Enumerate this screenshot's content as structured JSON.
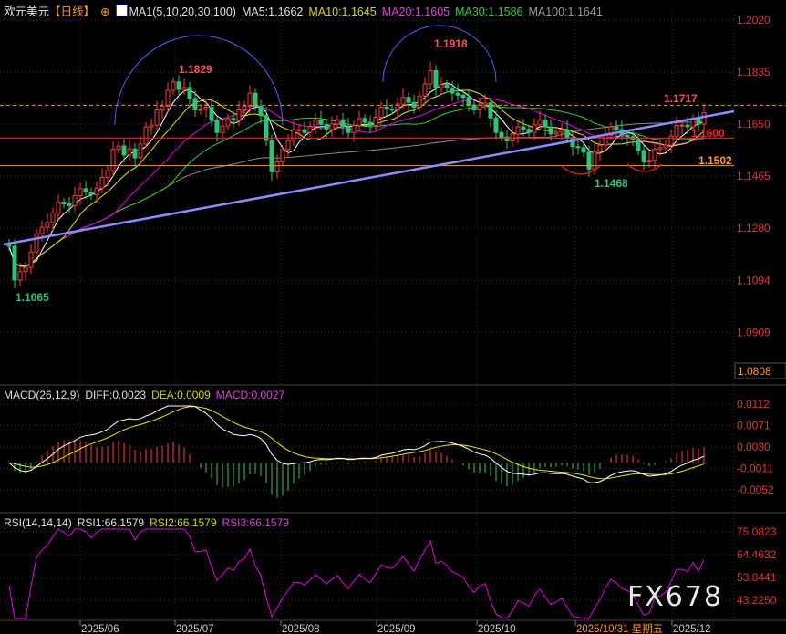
{
  "header": {
    "symbol": "欧元美元",
    "period": "【日线】",
    "indicator": "MA1(5,10,20,30,100)",
    "ma": [
      {
        "label": "MA5:1.1662",
        "color": "#ffffff"
      },
      {
        "label": "MA10:1.1645",
        "color": "#e6e600"
      },
      {
        "label": "MA20:1.1605",
        "color": "#e600e6"
      },
      {
        "label": "MA30:1.1586",
        "color": "#33cc33"
      },
      {
        "label": "MA100:1.1641",
        "color": "#999999"
      }
    ]
  },
  "macd_header": {
    "name": "MACD(26,12,9)",
    "diff": "DIFF:0.0023",
    "dea": "DEA:0.0009",
    "macd": "MACD:0.0027"
  },
  "rsi_header": {
    "name": "RSI(14,14,14)",
    "rsi1": "RSI1:66.1579",
    "rsi2": "RSI2:66.1579",
    "rsi3": "RSI3:66.1579"
  },
  "watermark": "FX678",
  "colors": {
    "up": "#ff3b3b",
    "down": "#2fc27a",
    "axis": "#e8303a",
    "trend": "#8c8cff",
    "arc": "#5a5aff"
  },
  "chart_data": {
    "type": "candlestick",
    "instrument": "欧元美元",
    "period": "日线",
    "price_ticks": [
      "1.2020",
      "1.1835",
      "1.1650",
      "1.1465",
      "1.1280",
      "1.1094",
      "1.0909"
    ],
    "price_range": [
      1.0808,
      1.202
    ],
    "current_price_box": "1.0808",
    "macd_ticks": [
      "0.0112",
      "0.0071",
      "0.0030",
      "-0.0011",
      "-0.0052"
    ],
    "rsi_ticks": [
      "75.0823",
      "64.4632",
      "53.8441",
      "43.2250"
    ],
    "x_labels": [
      {
        "label": "2025/06",
        "highlight": false
      },
      {
        "label": "2025/07",
        "highlight": false
      },
      {
        "label": "2025/08",
        "highlight": false
      },
      {
        "label": "2025/09",
        "highlight": false
      },
      {
        "label": "2025/10",
        "highlight": false
      },
      {
        "label": "2025/10/31 星期五",
        "highlight": true
      },
      {
        "label": "2025/12",
        "highlight": false
      }
    ],
    "annotations": [
      {
        "text": "1.1829",
        "price": 1.1829,
        "color": "#ff4d5e"
      },
      {
        "text": "1.1918",
        "price": 1.1918,
        "color": "#ff4d5e"
      },
      {
        "text": "1.1065",
        "price": 1.1065,
        "color": "#2fc27a"
      },
      {
        "text": "1.1468",
        "price": 1.1468,
        "color": "#2fc27a"
      },
      {
        "text": "1.1717",
        "price": 1.1717,
        "color": "#ff4d5e"
      },
      {
        "text": "1.1600",
        "price": 1.16,
        "color": "#ff2020"
      },
      {
        "text": "1.1502",
        "price": 1.1502,
        "color": "#ff9a1a"
      }
    ],
    "levels": [
      {
        "price": 1.1717,
        "style": "dashed",
        "color": "#ff8c1a"
      },
      {
        "price": 1.16,
        "style": "solid",
        "color": "#ff2020"
      },
      {
        "price": 1.1502,
        "style": "solid",
        "color": "#ff9a1a"
      }
    ],
    "closes": [
      1.1215,
      1.1095,
      1.1125,
      1.114,
      1.1195,
      1.126,
      1.1283,
      1.13,
      1.1334,
      1.1372,
      1.1366,
      1.136,
      1.1395,
      1.142,
      1.1408,
      1.1398,
      1.1422,
      1.146,
      1.1484,
      1.156,
      1.1572,
      1.154,
      1.1562,
      1.153,
      1.1579,
      1.164,
      1.1646,
      1.17,
      1.1714,
      1.177,
      1.18,
      1.1773,
      1.178,
      1.1741,
      1.17,
      1.1702,
      1.171,
      1.1663,
      1.162,
      1.1643,
      1.167,
      1.1663,
      1.17,
      1.1713,
      1.176,
      1.1713,
      1.168,
      1.1592,
      1.148,
      1.1515,
      1.156,
      1.1591,
      1.163,
      1.163,
      1.162,
      1.1642,
      1.1665,
      1.1649,
      1.163,
      1.165,
      1.1665,
      1.164,
      1.162,
      1.1645,
      1.167,
      1.1656,
      1.1645,
      1.1674,
      1.171,
      1.1703,
      1.17,
      1.1721,
      1.1745,
      1.1727,
      1.171,
      1.175,
      1.1793,
      1.184,
      1.178,
      1.179,
      1.1778,
      1.176,
      1.1753,
      1.1745,
      1.1718,
      1.17,
      1.1718,
      1.1725,
      1.1672,
      1.162,
      1.1604,
      1.159,
      1.1614,
      1.164,
      1.1631,
      1.162,
      1.1647,
      1.1665,
      1.164,
      1.1615,
      1.1621,
      1.163,
      1.1601,
      1.157,
      1.1566,
      1.155,
      1.149,
      1.1552,
      1.1575,
      1.1611,
      1.164,
      1.163,
      1.161,
      1.1605,
      1.1595,
      1.1556,
      1.1515,
      1.1521,
      1.156,
      1.1566,
      1.1575,
      1.1607,
      1.1645,
      1.1646,
      1.164,
      1.167,
      1.165,
      1.169
    ]
  }
}
